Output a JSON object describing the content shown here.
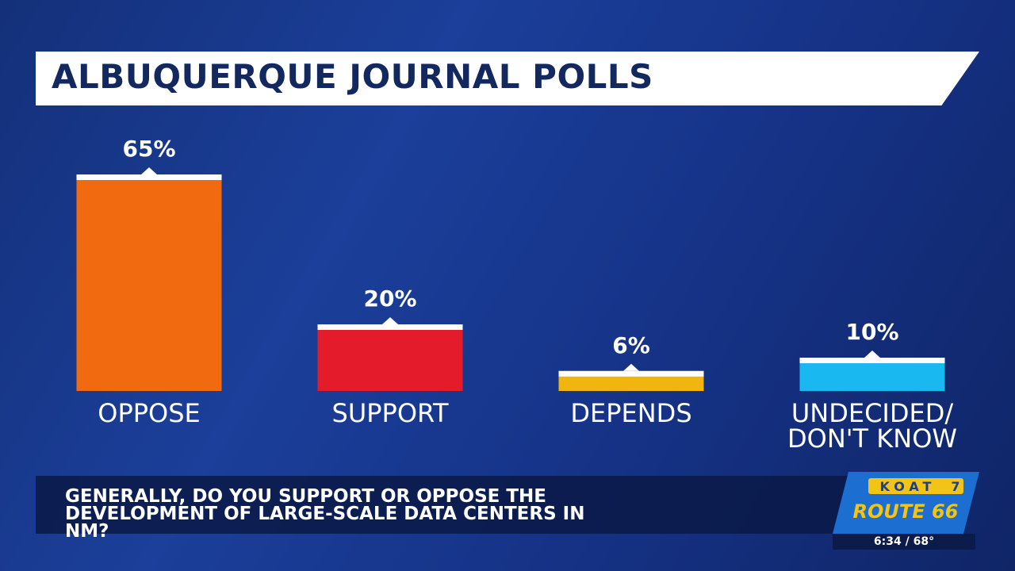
{
  "chart_data": {
    "type": "bar",
    "title": "ALBUQUERQUE JOURNAL POLLS",
    "categories": [
      "OPPOSE",
      "SUPPORT",
      "DEPENDS",
      "UNDECIDED/ DON'T KNOW"
    ],
    "values": [
      65,
      20,
      6,
      10
    ],
    "value_labels": [
      "65%",
      "20%",
      "6%",
      "10%"
    ],
    "colors": [
      "#f26a0f",
      "#e41b2a",
      "#f2b40f",
      "#19b8f0"
    ],
    "caption": "GENERALLY, DO YOU SUPPORT OR OPPOSE THE DEVELOPMENT OF LARGE-SCALE DATA CENTERS IN NM?"
  },
  "logo": {
    "station": "KOAT",
    "channel": "7",
    "brand": "ROUTE 66"
  },
  "ticker": "6:34 / 68°"
}
